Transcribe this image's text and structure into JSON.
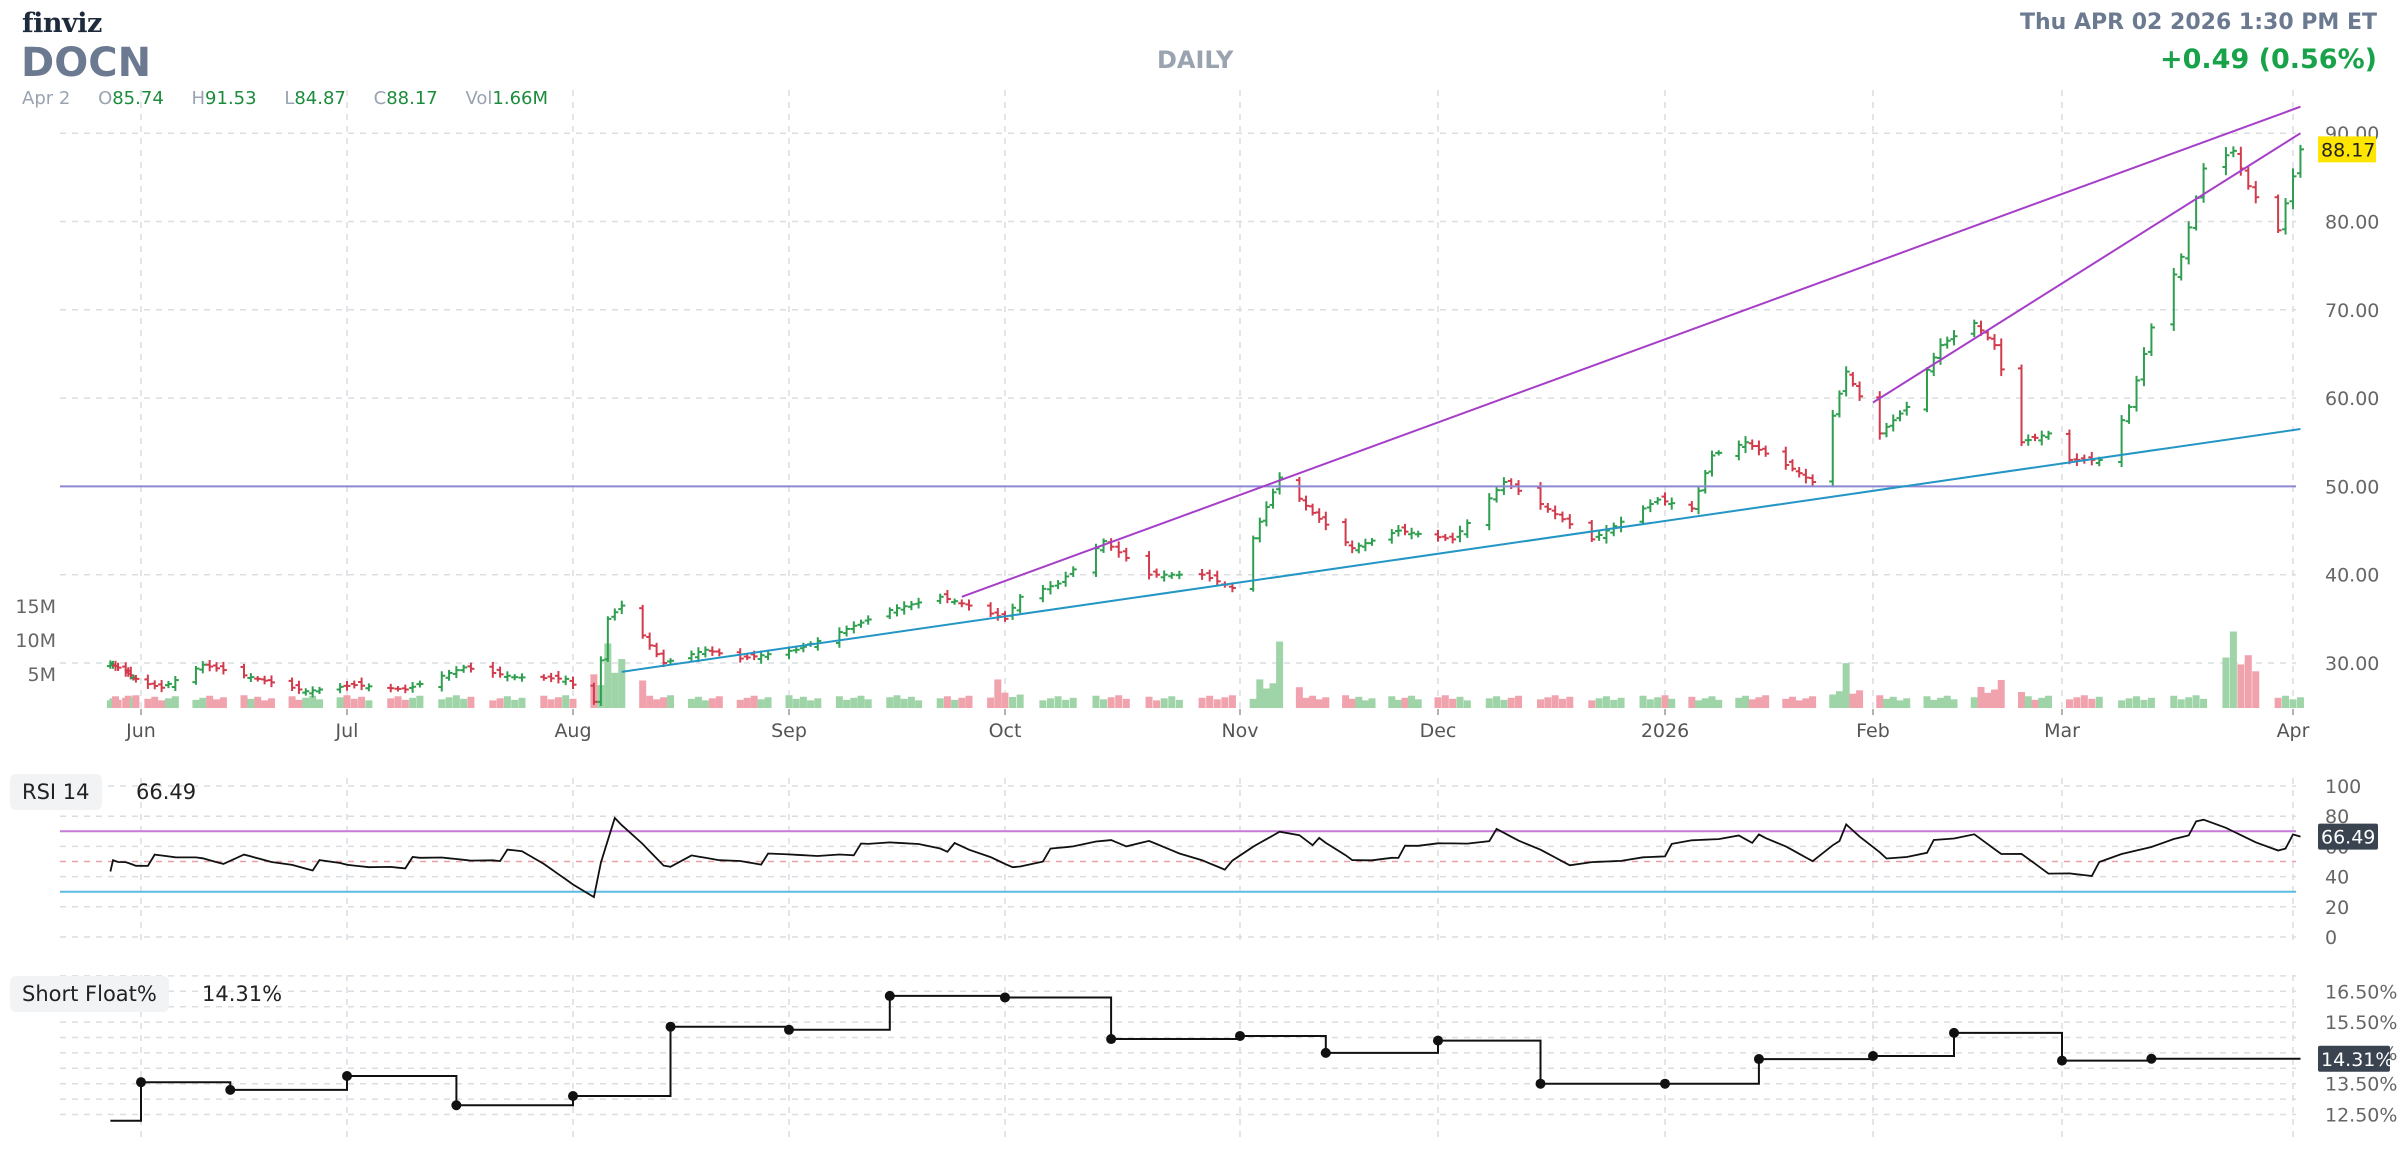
{
  "header": {
    "brand": "finviz",
    "ticker": "DOCN",
    "period": "DAILY",
    "datetime": "Thu APR 02 2026 1:30 PM ET",
    "change": "+0.49 (0.56%)",
    "date": "Apr 2",
    "ohlc": [
      {
        "label": "O",
        "value": "85.74"
      },
      {
        "label": "H",
        "value": "91.53"
      },
      {
        "label": "L",
        "value": "84.87"
      },
      {
        "label": "C",
        "value": "88.17"
      },
      {
        "label": "Vol",
        "value": "1.66M"
      }
    ]
  },
  "colors": {
    "up": "#2e9e4f",
    "down": "#d23b4c",
    "vol_up": "#9fd4a8",
    "vol_down": "#f0a3ad",
    "trend_purple": "#a63ec8",
    "trend_blue": "#2496c6",
    "hline": "#8c88d4",
    "price_label_bg": "#ffe600"
  },
  "indicators": {
    "rsi": {
      "label": "RSI 14",
      "value": "66.49"
    },
    "short_float": {
      "label": "Short Float%",
      "value": "14.31%"
    }
  },
  "chart_data": [
    {
      "type": "ohlc",
      "title": "DOCN",
      "y_axis_position": "right",
      "ylim": [
        24,
        94
      ],
      "yticks": [
        "30.00",
        "40.00",
        "50.00",
        "60.00",
        "70.00",
        "80.00",
        "90.00"
      ],
      "x_labels": [
        "Jun",
        "Jul",
        "Aug",
        "Sep",
        "Oct",
        "Nov",
        "Dec",
        "2026",
        "Feb",
        "Mar",
        "Apr"
      ],
      "last_price": "88.17",
      "horizontal_line": 50,
      "price_path": [
        [
          "2025-05-20",
          30
        ],
        [
          "2025-05-28",
          28.6
        ],
        [
          "2025-06-04",
          27.2
        ],
        [
          "2025-06-10",
          29.8
        ],
        [
          "2025-06-18",
          28.2
        ],
        [
          "2025-06-25",
          26.8
        ],
        [
          "2025-07-02",
          27.5
        ],
        [
          "2025-07-09",
          27
        ],
        [
          "2025-07-17",
          29.5
        ],
        [
          "2025-07-24",
          28.4
        ],
        [
          "2025-07-31",
          28.2
        ],
        [
          "2025-08-04",
          25.6
        ],
        [
          "2025-08-06",
          35
        ],
        [
          "2025-08-08",
          36.5
        ],
        [
          "2025-08-12",
          32
        ],
        [
          "2025-08-14",
          30
        ],
        [
          "2025-08-20",
          31.5
        ],
        [
          "2025-08-25",
          30.5
        ],
        [
          "2025-09-02",
          31.5
        ],
        [
          "2025-09-08",
          33.5
        ],
        [
          "2025-09-15",
          36
        ],
        [
          "2025-09-22",
          37.5
        ],
        [
          "2025-09-26",
          36.5
        ],
        [
          "2025-10-01",
          35
        ],
        [
          "2025-10-03",
          37.5
        ],
        [
          "2025-10-08",
          39
        ],
        [
          "2025-10-14",
          43.8
        ],
        [
          "2025-10-20",
          40
        ],
        [
          "2025-10-27",
          40
        ],
        [
          "2025-10-31",
          38.5
        ],
        [
          "2025-11-04",
          46
        ],
        [
          "2025-11-07",
          51
        ],
        [
          "2025-11-12",
          47
        ],
        [
          "2025-11-18",
          43
        ],
        [
          "2025-11-25",
          45
        ],
        [
          "2025-12-03",
          44
        ],
        [
          "2025-12-10",
          50.5
        ],
        [
          "2025-12-15",
          48
        ],
        [
          "2025-12-22",
          44
        ],
        [
          "2025-12-31",
          48.5
        ],
        [
          "2026-01-05",
          47.5
        ],
        [
          "2026-01-08",
          53.5
        ],
        [
          "2026-01-13",
          55
        ],
        [
          "2026-01-20",
          52
        ],
        [
          "2026-01-23",
          50.5
        ],
        [
          "2026-01-28",
          63
        ],
        [
          "2026-02-02",
          56
        ],
        [
          "2026-02-06",
          59
        ],
        [
          "2026-02-11",
          66
        ],
        [
          "2026-02-16",
          68.5
        ],
        [
          "2026-02-19",
          66
        ],
        [
          "2026-02-23",
          55
        ],
        [
          "2026-02-27",
          56
        ],
        [
          "2026-03-02",
          53
        ],
        [
          "2026-03-06",
          53
        ],
        [
          "2026-03-10",
          59
        ],
        [
          "2026-03-13",
          68
        ],
        [
          "2026-03-17",
          76
        ],
        [
          "2026-03-20",
          86
        ],
        [
          "2026-03-24",
          88
        ],
        [
          "2026-03-26",
          84
        ],
        [
          "2026-03-30",
          79
        ],
        [
          "2026-04-02",
          88.17
        ]
      ],
      "trendlines": [
        {
          "color": "purple",
          "from": [
            "2025-09-25",
            37.5
          ],
          "to": [
            "2026-04-02",
            93
          ]
        },
        {
          "color": "purple",
          "from": [
            "2026-02-01",
            59.5
          ],
          "to": [
            "2026-04-02",
            90
          ]
        },
        {
          "color": "blue",
          "from": [
            "2025-08-08",
            29
          ],
          "to": [
            "2026-04-02",
            56.5
          ]
        }
      ]
    },
    {
      "type": "bar",
      "title": "Volume",
      "yticks": [
        "5M",
        "10M",
        "15M"
      ],
      "ylim": [
        0,
        18000000
      ],
      "peaks": [
        [
          "2025-08-06",
          10000000
        ],
        [
          "2025-08-08",
          9000000
        ],
        [
          "2025-09-30",
          4000000
        ],
        [
          "2025-11-07",
          8500000
        ],
        [
          "2026-01-28",
          5500000
        ],
        [
          "2026-02-20",
          5500000
        ],
        [
          "2026-03-24",
          15000000
        ]
      ],
      "base_volume": 1500000
    },
    {
      "type": "line",
      "title": "RSI 14",
      "ylim": [
        0,
        100
      ],
      "yticks": [
        "0",
        "20",
        "40",
        "60",
        "80",
        "100"
      ],
      "reference_lines": [
        30,
        70
      ],
      "last_value": "66.49",
      "path": [
        [
          "2025-05-20",
          47
        ],
        [
          "2025-06-10",
          53
        ],
        [
          "2025-07-01",
          46
        ],
        [
          "2025-07-25",
          55
        ],
        [
          "2025-08-04",
          30
        ],
        [
          "2025-08-07",
          77
        ],
        [
          "2025-08-14",
          50
        ],
        [
          "2025-09-01",
          52
        ],
        [
          "2025-09-20",
          64
        ],
        [
          "2025-10-02",
          48
        ],
        [
          "2025-10-15",
          66
        ],
        [
          "2025-10-31",
          47
        ],
        [
          "2025-11-08",
          74
        ],
        [
          "2025-11-18",
          50
        ],
        [
          "2025-12-09",
          68
        ],
        [
          "2025-12-22",
          46
        ],
        [
          "2026-01-12",
          69
        ],
        [
          "2026-01-23",
          52
        ],
        [
          "2026-01-28",
          71
        ],
        [
          "2026-02-03",
          52
        ],
        [
          "2026-02-16",
          68
        ],
        [
          "2026-02-27",
          42
        ],
        [
          "2026-03-05",
          44
        ],
        [
          "2026-03-20",
          75
        ],
        [
          "2026-03-30",
          60
        ],
        [
          "2026-04-02",
          66.49
        ]
      ]
    },
    {
      "type": "step",
      "title": "Short Float%",
      "ylim": [
        12,
        17
      ],
      "yticks": [
        "12.50%",
        "13.50%",
        "14.50%",
        "15.50%",
        "16.50%"
      ],
      "last_value": "14.31%",
      "points": [
        [
          "2025-05-20",
          12.3
        ],
        [
          "2025-06-01",
          13.55
        ],
        [
          "2025-06-14",
          13.3
        ],
        [
          "2025-07-01",
          13.75
        ],
        [
          "2025-07-16",
          12.8
        ],
        [
          "2025-08-01",
          13.1
        ],
        [
          "2025-08-15",
          15.35
        ],
        [
          "2025-09-01",
          15.25
        ],
        [
          "2025-09-15",
          16.35
        ],
        [
          "2025-10-01",
          16.3
        ],
        [
          "2025-10-15",
          14.95
        ],
        [
          "2025-11-01",
          15.05
        ],
        [
          "2025-11-14",
          14.5
        ],
        [
          "2025-12-01",
          14.9
        ],
        [
          "2025-12-15",
          13.5
        ],
        [
          "2026-01-01",
          13.5
        ],
        [
          "2026-01-15",
          14.3
        ],
        [
          "2026-02-01",
          14.4
        ],
        [
          "2026-02-13",
          15.15
        ],
        [
          "2026-03-01",
          14.25
        ],
        [
          "2026-03-13",
          14.31
        ],
        [
          "2026-04-02",
          14.31
        ]
      ]
    }
  ]
}
